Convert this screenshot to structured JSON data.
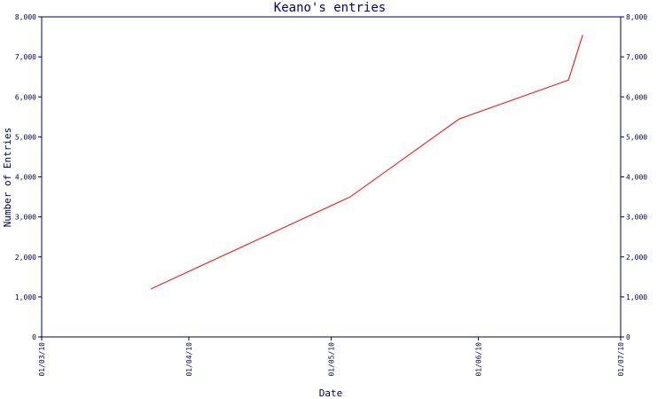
{
  "chart_data": {
    "type": "line",
    "title": "Keano's entries",
    "xlabel": "Date",
    "ylabel": "Number of Entries",
    "x_tick_labels": [
      "01/03/10",
      "01/04/10",
      "01/05/10",
      "01/06/10",
      "01/07/10"
    ],
    "x_ticks": [
      "2010-03-01",
      "2010-04-01",
      "2010-05-01",
      "2010-06-01",
      "2010-07-01"
    ],
    "y_tick_labels": [
      "0",
      "1,000",
      "2,000",
      "3,000",
      "4,000",
      "5,000",
      "6,000",
      "7,000",
      "8,000"
    ],
    "ylim": [
      0,
      8000
    ],
    "xlim": [
      "2010-03-01",
      "2010-07-01"
    ],
    "grid": false,
    "right_axis_mirror": true,
    "series": [
      {
        "color": "#ff0000",
        "x": [
          "2010-03-24",
          "2010-05-05",
          "2010-05-28",
          "2010-06-20",
          "2010-06-20",
          "2010-06-23"
        ],
        "y": [
          1200,
          3500,
          5450,
          6420,
          6420,
          7550
        ]
      }
    ],
    "colors": {
      "axis": "#00005f",
      "line": "#ff0000",
      "title": "#00007f"
    }
  }
}
